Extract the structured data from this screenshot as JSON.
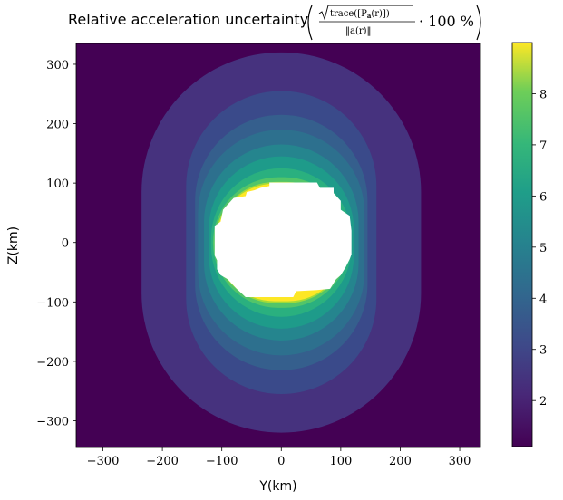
{
  "chart_data": {
    "type": "heatmap",
    "title": {
      "prefix": "Relative acceleration uncertainty",
      "numerator": "trace([P",
      "numerator_sub": "a",
      "numerator_arg": "(r)])",
      "denominator": "‖a(r)‖",
      "suffix": "· 100 %"
    },
    "xlabel": "Y(km)",
    "ylabel": "Z(km)",
    "xlim": [
      -345,
      335
    ],
    "ylim": [
      -345,
      335
    ],
    "xticks": [
      "−300",
      "−200",
      "−100",
      "0",
      "100",
      "200",
      "300"
    ],
    "xtick_values": [
      -300,
      -200,
      -100,
      0,
      100,
      200,
      300
    ],
    "yticks": [
      "300",
      "200",
      "100",
      "0",
      "−100",
      "−200",
      "−300"
    ],
    "ytick_values": [
      300,
      200,
      100,
      0,
      -100,
      -200,
      -300
    ],
    "colormap": "viridis",
    "colorbar": {
      "range": [
        1.1,
        9.0
      ],
      "ticks": [
        "2",
        "3",
        "4",
        "5",
        "6",
        "7",
        "8"
      ],
      "tick_values": [
        2,
        3,
        4,
        5,
        6,
        7,
        8
      ]
    },
    "contour_levels": [
      {
        "value": 1.1,
        "color": "#440154",
        "outer_half_width": 345
      },
      {
        "value": 1.6,
        "color": "#46327e",
        "outer_half_width": 235,
        "outer_vertical_half_height": 320
      },
      {
        "value": 2.2,
        "color": "#3a4a8a",
        "outer_half_width": 160,
        "outer_vertical_half_height": 255
      },
      {
        "value": 2.8,
        "color": "#355f8d",
        "outer_half_width": 145,
        "outer_vertical_half_height": 215
      },
      {
        "value": 3.5,
        "color": "#2d708e",
        "outer_half_width": 140,
        "outer_vertical_half_height": 190
      },
      {
        "value": 4.3,
        "color": "#25858e",
        "outer_half_width": 130,
        "outer_vertical_half_height": 165
      },
      {
        "value": 5.1,
        "color": "#1e9b8a",
        "outer_half_width": 122,
        "outer_vertical_half_height": 145
      },
      {
        "value": 6.0,
        "color": "#2ab07f",
        "outer_half_width": 118,
        "outer_vertical_half_height": 125
      },
      {
        "value": 7.0,
        "color": "#52c569",
        "outer_half_width": 115,
        "outer_vertical_half_height": 110
      },
      {
        "value": 8.0,
        "color": "#a0da39",
        "outer_half_width": 112,
        "outer_vertical_half_height": 102
      },
      {
        "value": 9.0,
        "color": "#fde725",
        "outer_half_width": 110,
        "outer_vertical_half_height": 99
      }
    ],
    "masked_region": "white body region in the center (no data)"
  }
}
